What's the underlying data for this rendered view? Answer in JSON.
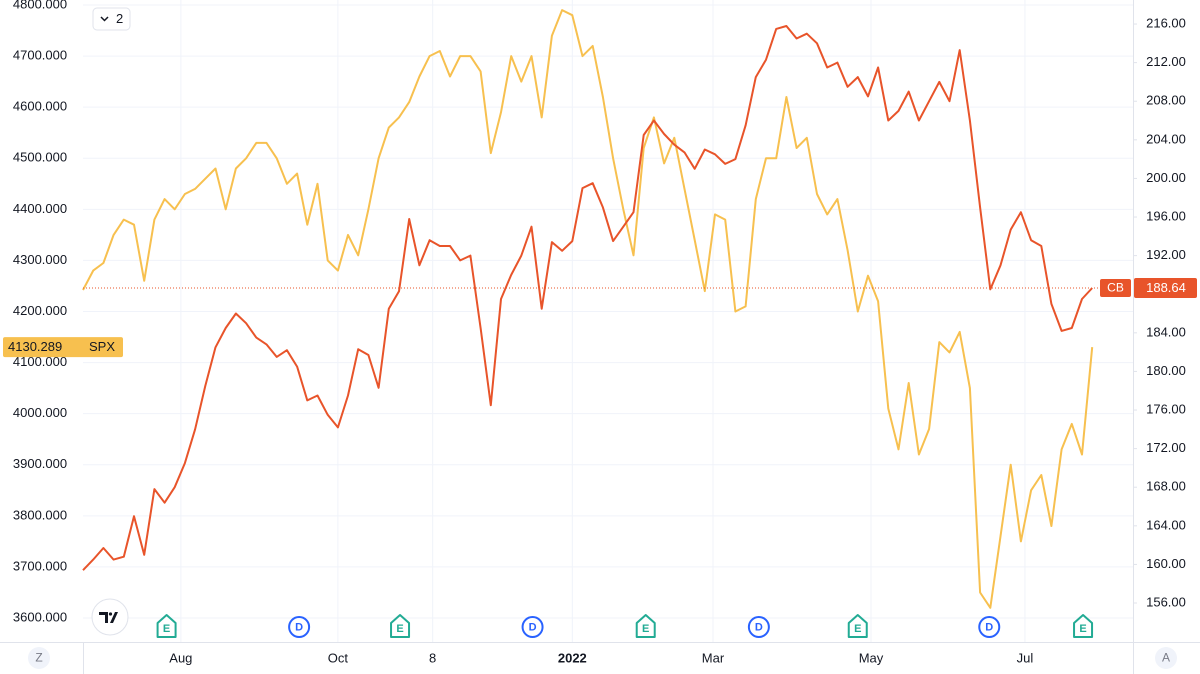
{
  "chart_data": {
    "type": "line",
    "series": [
      {
        "name": "SPX",
        "color": "#f7c04f",
        "axis": "y",
        "values": [
          4242,
          4280,
          4295,
          4350,
          4380,
          4370,
          4260,
          4380,
          4420,
          4400,
          4430,
          4440,
          4460,
          4480,
          4400,
          4480,
          4500,
          4530,
          4530,
          4500,
          4450,
          4470,
          4370,
          4450,
          4300,
          4280,
          4350,
          4310,
          4400,
          4500,
          4560,
          4580,
          4610,
          4660,
          4700,
          4710,
          4660,
          4700,
          4700,
          4670,
          4510,
          4590,
          4700,
          4650,
          4700,
          4580,
          4740,
          4790,
          4780,
          4700,
          4720,
          4620,
          4500,
          4400,
          4310,
          4520,
          4580,
          4490,
          4540,
          4440,
          4340,
          4240,
          4390,
          4380,
          4200,
          4210,
          4420,
          4500,
          4500,
          4620,
          4520,
          4540,
          4430,
          4390,
          4420,
          4320,
          4200,
          4270,
          4220,
          4010,
          3930,
          4060,
          3920,
          3970,
          4140,
          4120,
          4160,
          4050,
          3650,
          3620,
          3760,
          3900,
          3750,
          3850,
          3880,
          3780,
          3930,
          3980,
          3920,
          4130.289
        ]
      },
      {
        "name": "CB",
        "color": "#e8542a",
        "axis": "y2",
        "values": [
          159.4,
          160.5,
          161.7,
          160.5,
          160.8,
          165,
          161,
          167.8,
          166.4,
          168,
          170.5,
          174,
          178.5,
          182.5,
          184.5,
          186,
          185,
          183.5,
          182.8,
          181.5,
          182.2,
          180.5,
          177,
          177.5,
          175.5,
          174.2,
          177.5,
          182.3,
          181.7,
          178.3,
          186.5,
          188.3,
          195.8,
          191,
          193.6,
          193,
          193,
          191.5,
          192,
          184.5,
          176.5,
          187.5,
          190,
          192,
          195,
          186.5,
          193.4,
          192.5,
          193.5,
          199,
          199.5,
          197,
          193.5,
          195,
          196.5,
          204.5,
          206,
          204.6,
          203.5,
          202.7,
          201,
          203,
          202.5,
          201.5,
          202,
          205.5,
          210.5,
          212.3,
          215.5,
          215.8,
          214.5,
          215,
          214,
          211.5,
          212,
          209.5,
          210.5,
          208.5,
          211.5,
          206,
          207,
          209,
          206,
          208,
          210,
          208,
          213.3,
          206,
          197,
          188.5,
          191,
          194.7,
          196.5,
          193.6,
          193,
          187,
          184.2,
          184.5,
          187.5,
          188.64
        ]
      }
    ],
    "xlim": [
      0,
      103
    ],
    "xticks": [
      {
        "value": 9.6,
        "label": "Aug"
      },
      {
        "value": 25,
        "label": "Oct"
      },
      {
        "value": 34.3,
        "label": "8"
      },
      {
        "value": 48,
        "label": "2022"
      },
      {
        "value": 61.8,
        "label": "Mar"
      },
      {
        "value": 77.3,
        "label": "May"
      },
      {
        "value": 92.4,
        "label": "Jul"
      }
    ],
    "ylim": [
      3553,
      4809.8
    ],
    "yticks": [
      {
        "value": 3600,
        "label": "3600.000"
      },
      {
        "value": 3700,
        "label": "3700.000"
      },
      {
        "value": 3800,
        "label": "3800.000"
      },
      {
        "value": 3900,
        "label": "3900.000"
      },
      {
        "value": 4000,
        "label": "4000.000"
      },
      {
        "value": 4100,
        "label": "4100.000"
      },
      {
        "value": 4200,
        "label": "4200.000"
      },
      {
        "value": 4300,
        "label": "4300.000"
      },
      {
        "value": 4400,
        "label": "4400.000"
      },
      {
        "value": 4500,
        "label": "4500.000"
      },
      {
        "value": 4600,
        "label": "4600.000"
      },
      {
        "value": 4700,
        "label": "4700.000"
      },
      {
        "value": 4800,
        "label": "4800.000"
      }
    ],
    "y2lim": [
      151.96,
      218.49
    ],
    "y2ticks": [
      {
        "value": 156,
        "label": "156.00"
      },
      {
        "value": 160,
        "label": "160.00"
      },
      {
        "value": 164,
        "label": "164.00"
      },
      {
        "value": 168,
        "label": "168.00"
      },
      {
        "value": 172,
        "label": "172.00"
      },
      {
        "value": 176,
        "label": "176.00"
      },
      {
        "value": 180,
        "label": "180.00"
      },
      {
        "value": 184,
        "label": "184.00"
      },
      {
        "value": 192,
        "label": "192.00"
      },
      {
        "value": 196,
        "label": "196.00"
      },
      {
        "value": 200,
        "label": "200.00"
      },
      {
        "value": 204,
        "label": "204.00"
      },
      {
        "value": 208,
        "label": "208.00"
      },
      {
        "value": 212,
        "label": "212.00"
      },
      {
        "value": 216,
        "label": "216.00"
      }
    ],
    "grid": true,
    "events": [
      {
        "x": 8.2,
        "label": "E"
      },
      {
        "x": 21.2,
        "label": "D"
      },
      {
        "x": 31.1,
        "label": "E"
      },
      {
        "x": 44.1,
        "label": "D"
      },
      {
        "x": 55.2,
        "label": "E"
      },
      {
        "x": 66.3,
        "label": "D"
      },
      {
        "x": 76.0,
        "label": "E"
      },
      {
        "x": 88.9,
        "label": "D"
      },
      {
        "x": 98.1,
        "label": "E"
      }
    ]
  },
  "ui": {
    "legend_toggle": "2",
    "left_scale_button": "Z",
    "right_scale_button": "A"
  }
}
